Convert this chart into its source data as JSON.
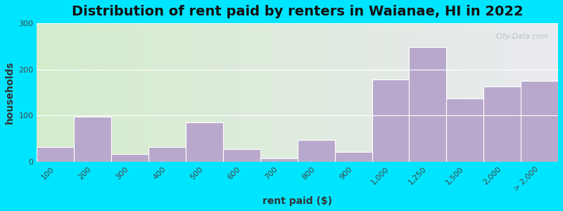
{
  "title": "Distribution of rent paid by renters in Waianae, HI in 2022",
  "xlabel": "rent paid ($)",
  "ylabel": "households",
  "bin_labels": [
    "100",
    "200",
    "300",
    "400",
    "500",
    "600",
    "700",
    "800",
    "900",
    "1,000",
    "1,250",
    "1,500",
    "2,000",
    "> 2,000"
  ],
  "bin_edges": [
    0,
    1,
    2,
    3,
    4,
    5,
    6,
    7,
    8,
    9,
    10,
    11,
    12,
    13,
    14
  ],
  "bar_lefts": [
    0,
    1,
    2,
    3,
    4,
    5,
    6,
    7,
    8,
    9,
    10,
    11,
    12,
    13
  ],
  "bar_widths": [
    1,
    1,
    1,
    1,
    1,
    1,
    1,
    1,
    1,
    1,
    1,
    1,
    1,
    1
  ],
  "values": [
    32,
    98,
    17,
    32,
    85,
    28,
    8,
    48,
    22,
    178,
    248,
    138,
    163,
    175
  ],
  "bar_color": "#b8a8cc",
  "bar_edge_color": "#ffffff",
  "ylim": [
    0,
    300
  ],
  "yticks": [
    0,
    100,
    200,
    300
  ],
  "background_outer": "#00e5ff",
  "background_inner_left": "#d4eccc",
  "background_inner_right": "#eaeaf0",
  "title_fontsize": 14,
  "axis_label_fontsize": 10,
  "tick_fontsize": 8,
  "watermark_text": "City-Data.com"
}
